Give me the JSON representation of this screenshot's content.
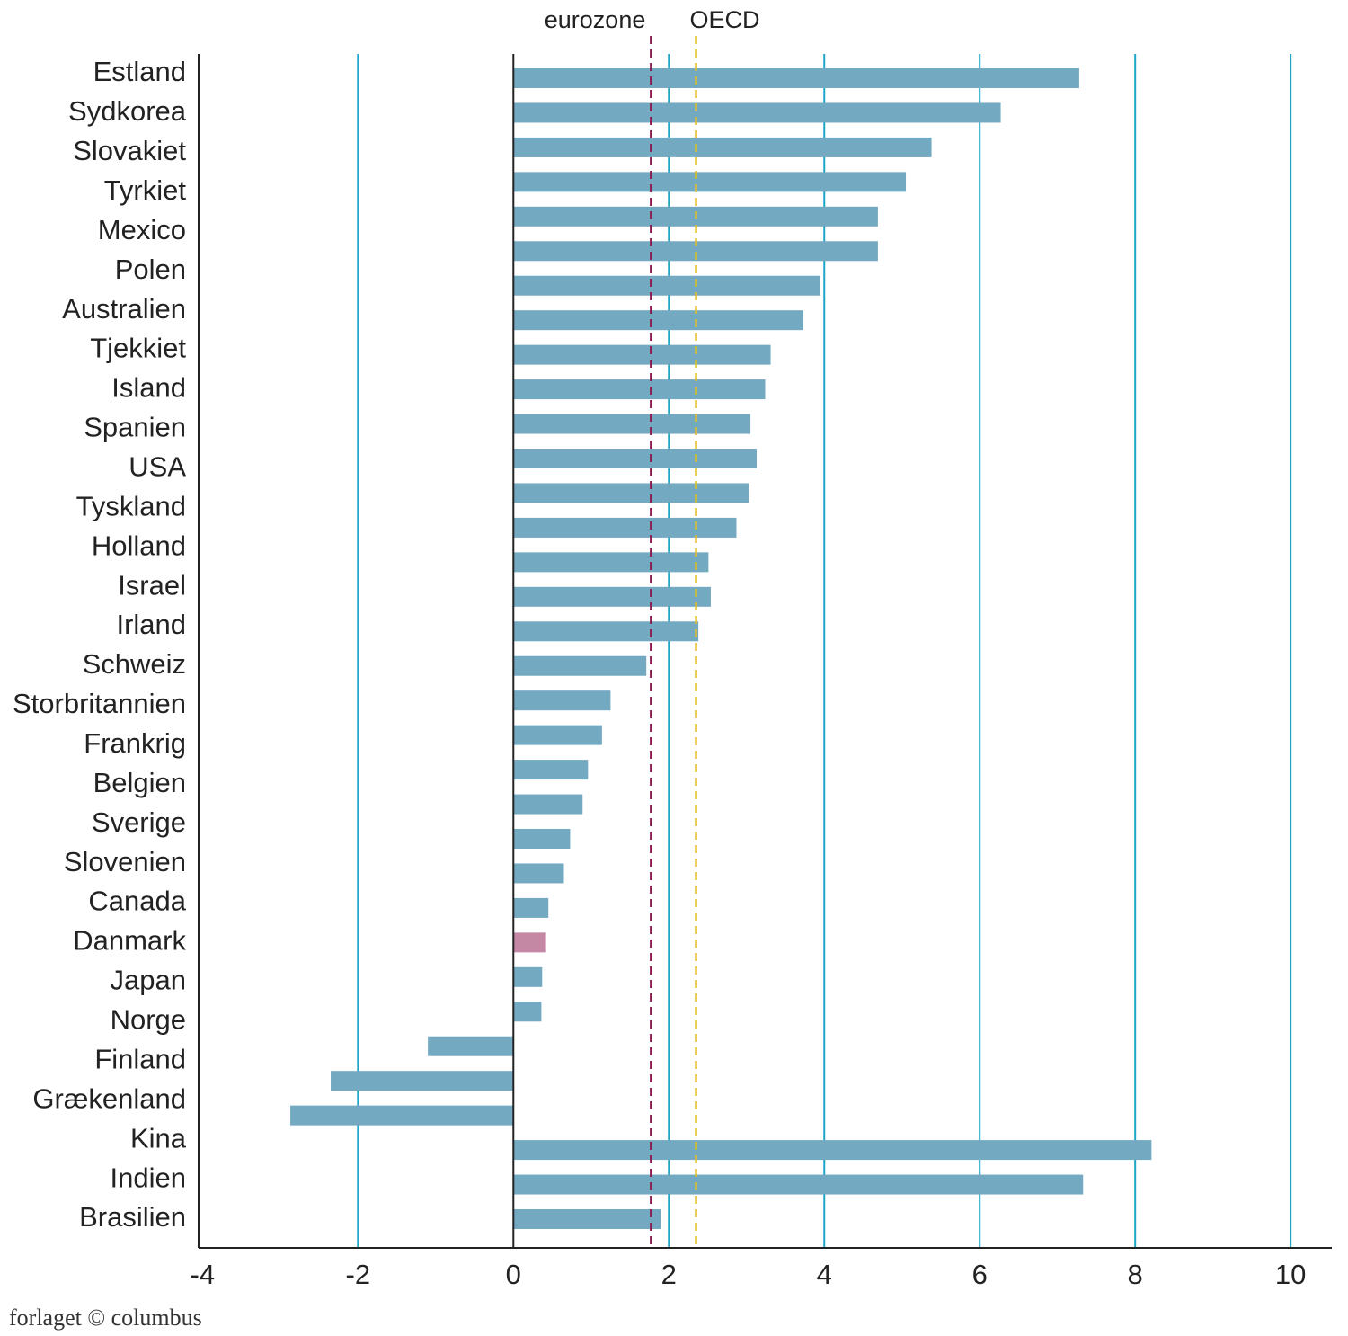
{
  "chart_data": {
    "type": "hbar",
    "categories": [
      "Estland",
      "Sydkorea",
      "Slovakiet",
      "Tyrkiet",
      "Mexico",
      "Polen",
      null,
      "Australien",
      "Tjekkiet",
      "Island",
      "Spanien",
      "USA",
      "Tyskland",
      null,
      "Holland",
      "Israel",
      "Irland",
      "Schweiz",
      "Storbritannien",
      "Frankrig",
      null,
      "Belgien",
      "Sverige",
      "Slovenien",
      "Canada",
      "Danmark",
      "Japan",
      "Norge",
      "Finland",
      "Grækenland",
      null,
      "Kina",
      "Indien",
      "Brasilien"
    ],
    "values": [
      7.28,
      6.27,
      5.38,
      5.05,
      4.69,
      4.69,
      3.95,
      3.73,
      3.31,
      3.24,
      3.05,
      3.13,
      3.03,
      2.87,
      2.51,
      2.54,
      2.38,
      1.71,
      1.25,
      1.14,
      0.96,
      0.89,
      0.73,
      0.65,
      0.45,
      0.42,
      0.37,
      0.36,
      -1.1,
      -2.35,
      -2.87,
      8.21,
      7.33,
      1.9
    ],
    "colors": [
      "#74a9c2",
      "#74a9c2",
      "#74a9c2",
      "#74a9c2",
      "#74a9c2",
      "#74a9c2",
      "#74a9c2",
      "#74a9c2",
      "#74a9c2",
      "#74a9c2",
      "#74a9c2",
      "#74a9c2",
      "#74a9c2",
      "#74a9c2",
      "#74a9c2",
      "#74a9c2",
      "#74a9c2",
      "#74a9c2",
      "#74a9c2",
      "#74a9c2",
      "#74a9c2",
      "#74a9c2",
      "#74a9c2",
      "#74a9c2",
      "#74a9c2",
      "#c487a4",
      "#74a9c2",
      "#74a9c2",
      "#74a9c2",
      "#74a9c2",
      "#74a9c2",
      "#74a9c2",
      "#74a9c2",
      "#74a9c2"
    ],
    "xlim": [
      -4.05,
      10.53
    ],
    "xticks": [
      -4,
      -2,
      0,
      2,
      4,
      6,
      8,
      10
    ],
    "grid": true,
    "grid_color": "#1ea6c8",
    "reference_lines": [
      {
        "name": "eurozone",
        "value": 1.77,
        "color": "#8b1a4f"
      },
      {
        "name": "OECD",
        "value": 2.35,
        "color": "#e0c020"
      }
    ],
    "footer": "forlaget © columbus"
  }
}
